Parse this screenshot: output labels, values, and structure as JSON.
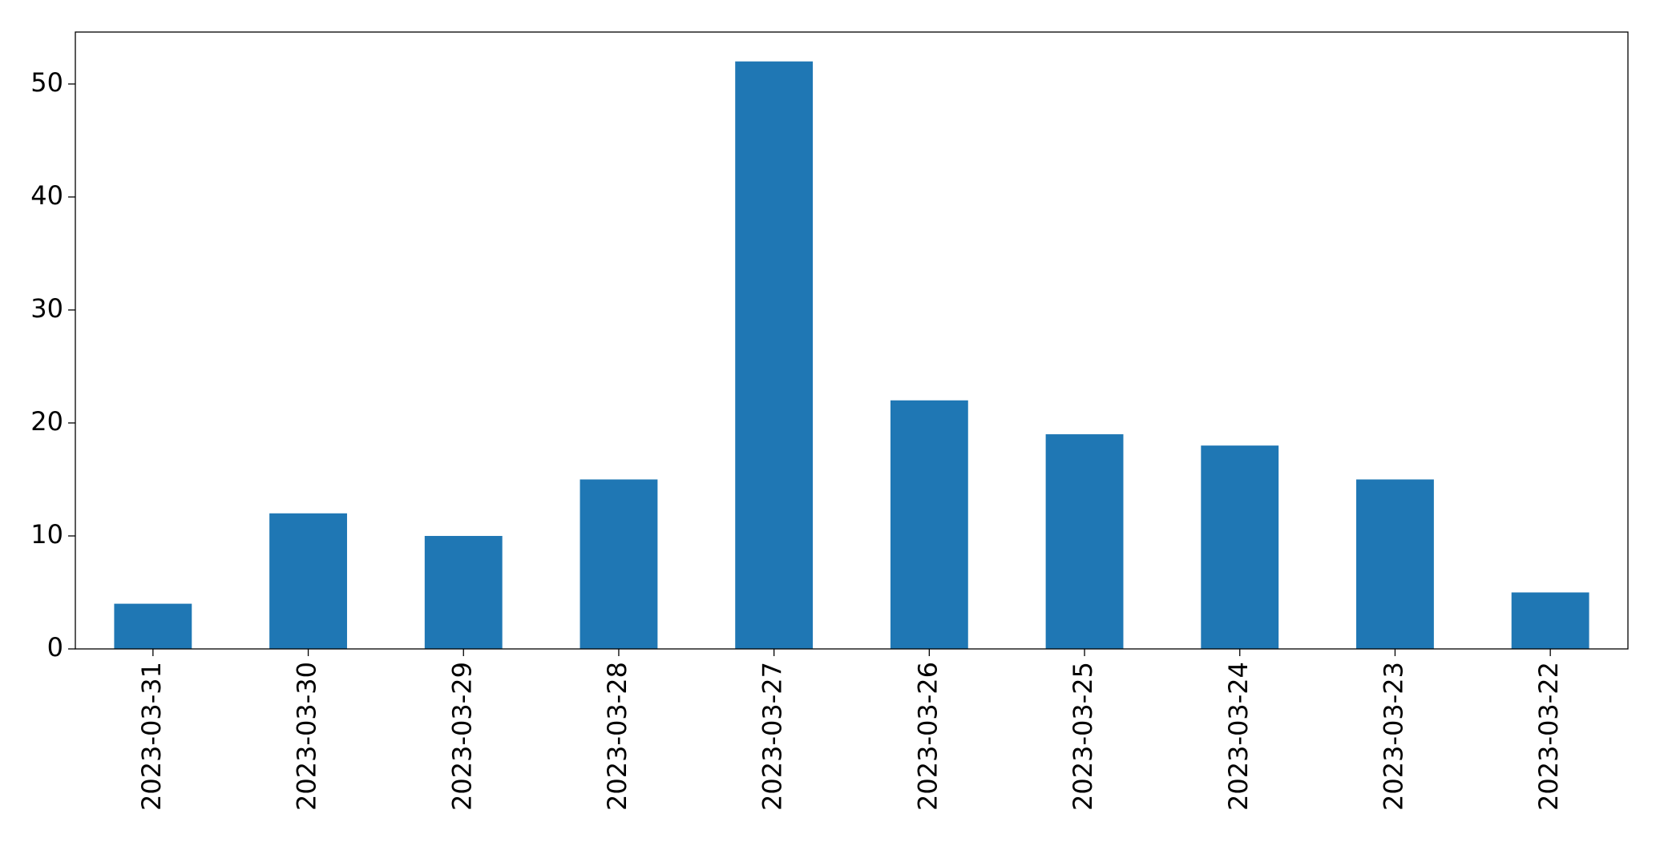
{
  "chart_data": {
    "type": "bar",
    "categories": [
      "2023-03-31",
      "2023-03-30",
      "2023-03-29",
      "2023-03-28",
      "2023-03-27",
      "2023-03-26",
      "2023-03-25",
      "2023-03-24",
      "2023-03-23",
      "2023-03-22"
    ],
    "values": [
      4,
      12,
      10,
      15,
      52,
      22,
      19,
      18,
      15,
      5
    ],
    "color": "#1f77b4",
    "ylim": [
      0,
      54.6
    ],
    "yticks": [
      0,
      10,
      20,
      30,
      40,
      50
    ],
    "grid": false
  }
}
